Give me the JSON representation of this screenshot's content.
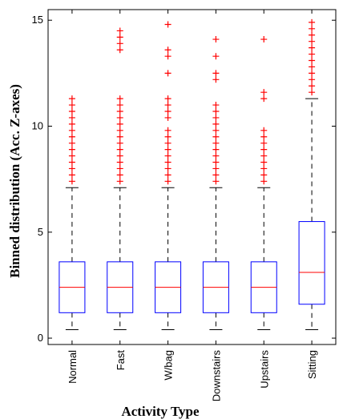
{
  "chart_data": {
    "type": "box",
    "title": "",
    "xlabel": "Activity Type",
    "ylabel": "Binned distribution (Acc. Z-axes)",
    "ylim": [
      -0.3,
      15.5
    ],
    "yticks": [
      0,
      5,
      10,
      15
    ],
    "categories": [
      "Normal",
      "Fast",
      "W/bag",
      "Downstairs",
      "Upstairs",
      "Sitting"
    ],
    "boxes": [
      {
        "category": "Normal",
        "whisker_low": 0.4,
        "q1": 1.2,
        "median": 2.4,
        "q3": 3.6,
        "whisker_high": 7.1,
        "outliers": [
          7.4,
          7.7,
          8.0,
          8.3,
          8.6,
          8.9,
          9.2,
          9.5,
          9.8,
          10.1,
          10.4,
          10.7,
          11.0,
          11.3
        ]
      },
      {
        "category": "Fast",
        "whisker_low": 0.4,
        "q1": 1.2,
        "median": 2.4,
        "q3": 3.6,
        "whisker_high": 7.1,
        "outliers": [
          7.4,
          7.7,
          8.0,
          8.3,
          8.6,
          8.9,
          9.2,
          9.5,
          9.8,
          10.1,
          10.4,
          10.7,
          11.0,
          11.3,
          13.6,
          13.9,
          14.2,
          14.5
        ]
      },
      {
        "category": "W/bag",
        "whisker_low": 0.4,
        "q1": 1.2,
        "median": 2.4,
        "q3": 3.6,
        "whisker_high": 7.1,
        "outliers": [
          7.4,
          7.7,
          8.0,
          8.3,
          8.6,
          8.9,
          9.2,
          9.5,
          9.8,
          10.4,
          10.7,
          11.0,
          11.3,
          12.5,
          13.3,
          13.6,
          14.8
        ]
      },
      {
        "category": "Downstairs",
        "whisker_low": 0.4,
        "q1": 1.2,
        "median": 2.4,
        "q3": 3.6,
        "whisker_high": 7.1,
        "outliers": [
          7.4,
          7.7,
          8.0,
          8.3,
          8.6,
          8.9,
          9.2,
          9.5,
          9.8,
          10.1,
          10.4,
          10.7,
          11.0,
          12.2,
          12.5,
          13.3,
          14.1
        ]
      },
      {
        "category": "Upstairs",
        "whisker_low": 0.4,
        "q1": 1.2,
        "median": 2.4,
        "q3": 3.6,
        "whisker_high": 7.1,
        "outliers": [
          7.4,
          7.7,
          8.0,
          8.3,
          8.6,
          8.9,
          9.2,
          9.5,
          9.8,
          11.3,
          11.6,
          14.1
        ]
      },
      {
        "category": "Sitting",
        "whisker_low": 0.4,
        "q1": 1.6,
        "median": 3.1,
        "q3": 5.5,
        "whisker_high": 11.3,
        "outliers": [
          11.6,
          11.9,
          12.2,
          12.5,
          12.8,
          13.1,
          13.4,
          13.7,
          14.0,
          14.3,
          14.6,
          14.9
        ]
      }
    ],
    "colors": {
      "box": "#0000ff",
      "median": "#ff0000",
      "outlier": "#ff0000",
      "whisker": "#000000",
      "axes": "#000000"
    }
  }
}
